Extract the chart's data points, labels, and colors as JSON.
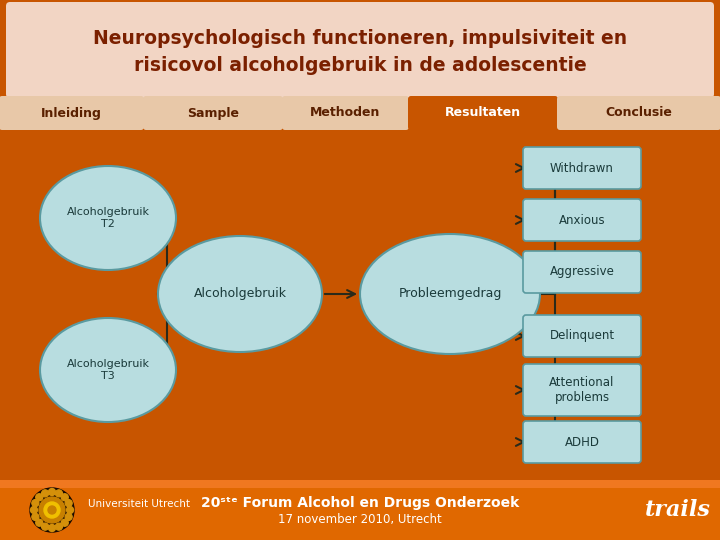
{
  "title_line1": "Neuropsychologisch functioneren, impulsiviteit en",
  "title_line2": "risicovol alcoholgebruik in de adolescentie",
  "title_bg": "#f2d5c4",
  "title_color": "#7B2000",
  "main_bg": "#c85500",
  "footer_bg": "#d86000",
  "nav_tabs": [
    "Inleiding",
    "Sample",
    "Methoden",
    "Resultaten",
    "Conclusie"
  ],
  "nav_active": "Resultaten",
  "nav_active_bg": "#c85500",
  "nav_active_fg": "#ffffff",
  "nav_inactive_bg": "#e8c8a8",
  "nav_inactive_fg": "#5a2000",
  "circle_fill": "#b8dde0",
  "circle_edge": "#5a9aa0",
  "box_fill": "#b8dde0",
  "box_edge": "#5a9aa0",
  "arrow_color": "#2a2a1a",
  "font_name": "DejaVu Sans"
}
